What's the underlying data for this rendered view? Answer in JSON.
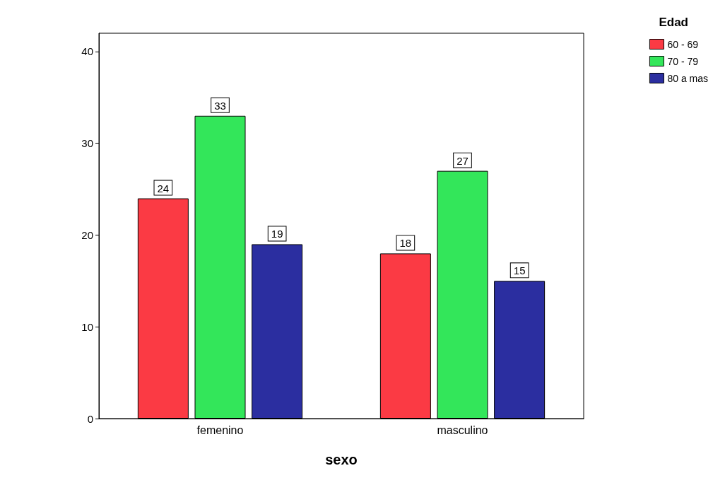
{
  "chart_data": {
    "type": "bar",
    "xlabel": "sexo",
    "legend_title": "Edad",
    "categories": [
      "femenino",
      "masculino"
    ],
    "series": [
      {
        "name": "60 - 69",
        "color": "#fb3a44",
        "values": [
          24,
          18
        ]
      },
      {
        "name": "70 - 79",
        "color": "#33e65a",
        "values": [
          33,
          27
        ]
      },
      {
        "name": "80 a mas",
        "color": "#2b2ea0",
        "values": [
          19,
          15
        ]
      }
    ],
    "ylim": [
      0,
      42
    ],
    "yticks": [
      0,
      10,
      20,
      30,
      40
    ],
    "grid": false,
    "legend": "top right",
    "data_labels": true
  }
}
